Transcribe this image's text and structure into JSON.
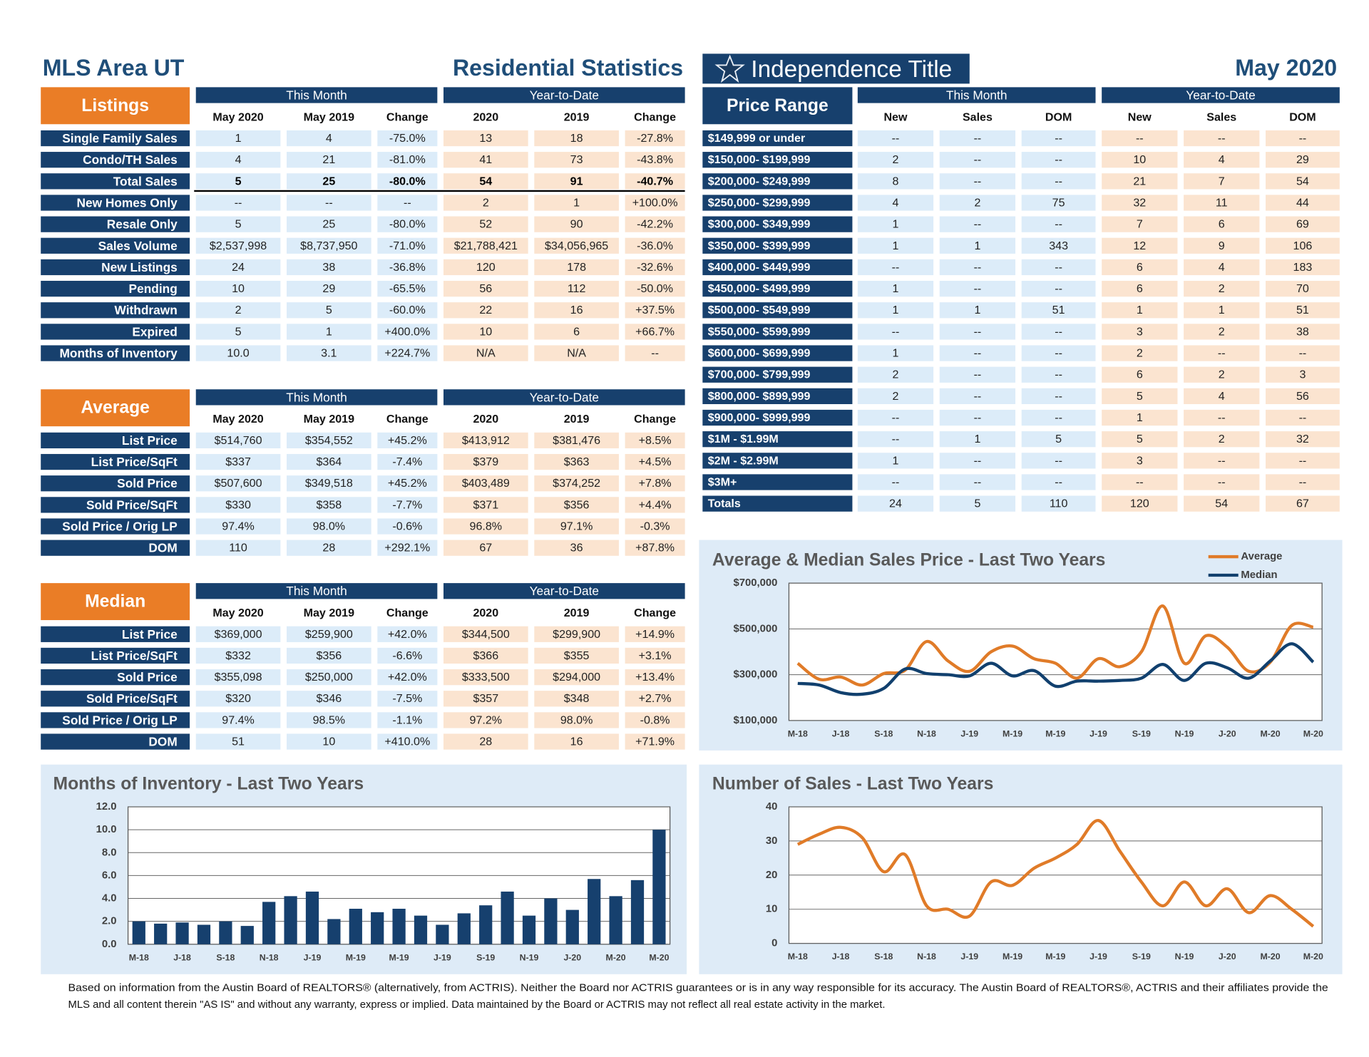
{
  "header": {
    "area": "MLS Area UT",
    "title": "Residential Statistics",
    "logo": "Independence Title",
    "date": "May 2020"
  },
  "listings": {
    "title": "Listings",
    "groups": [
      "This Month",
      "Year-to-Date"
    ],
    "columns": [
      "May 2020",
      "May 2019",
      "Change",
      "2020",
      "2019",
      "Change"
    ],
    "rows": [
      {
        "label": "Single Family Sales",
        "cells": [
          "1",
          "4",
          "-75.0%",
          "13",
          "18",
          "-27.8%"
        ]
      },
      {
        "label": "Condo/TH Sales",
        "cells": [
          "4",
          "21",
          "-81.0%",
          "41",
          "73",
          "-43.8%"
        ]
      },
      {
        "label": "Total Sales",
        "cells": [
          "5",
          "25",
          "-80.0%",
          "54",
          "91",
          "-40.7%"
        ]
      },
      {
        "label": "New Homes Only",
        "cells": [
          "--",
          "--",
          "--",
          "2",
          "1",
          "+100.0%"
        ]
      },
      {
        "label": "Resale Only",
        "cells": [
          "5",
          "25",
          "-80.0%",
          "52",
          "90",
          "-42.2%"
        ]
      },
      {
        "label": "Sales Volume",
        "cells": [
          "$2,537,998",
          "$8,737,950",
          "-71.0%",
          "$21,788,421",
          "$34,056,965",
          "-36.0%"
        ]
      },
      {
        "label": "New Listings",
        "cells": [
          "24",
          "38",
          "-36.8%",
          "120",
          "178",
          "-32.6%"
        ]
      },
      {
        "label": "Pending",
        "cells": [
          "10",
          "29",
          "-65.5%",
          "56",
          "112",
          "-50.0%"
        ]
      },
      {
        "label": "Withdrawn",
        "cells": [
          "2",
          "5",
          "-60.0%",
          "22",
          "16",
          "+37.5%"
        ]
      },
      {
        "label": "Expired",
        "cells": [
          "5",
          "1",
          "+400.0%",
          "10",
          "6",
          "+66.7%"
        ]
      },
      {
        "label": "Months of Inventory",
        "cells": [
          "10.0",
          "3.1",
          "+224.7%",
          "N/A",
          "N/A",
          "--"
        ]
      }
    ]
  },
  "average": {
    "title": "Average",
    "groups": [
      "This Month",
      "Year-to-Date"
    ],
    "columns": [
      "May 2020",
      "May 2019",
      "Change",
      "2020",
      "2019",
      "Change"
    ],
    "rows": [
      {
        "label": "List Price",
        "cells": [
          "$514,760",
          "$354,552",
          "+45.2%",
          "$413,912",
          "$381,476",
          "+8.5%"
        ]
      },
      {
        "label": "List Price/SqFt",
        "cells": [
          "$337",
          "$364",
          "-7.4%",
          "$379",
          "$363",
          "+4.5%"
        ]
      },
      {
        "label": "Sold Price",
        "cells": [
          "$507,600",
          "$349,518",
          "+45.2%",
          "$403,489",
          "$374,252",
          "+7.8%"
        ]
      },
      {
        "label": "Sold Price/SqFt",
        "cells": [
          "$330",
          "$358",
          "-7.7%",
          "$371",
          "$356",
          "+4.4%"
        ]
      },
      {
        "label": "Sold Price / Orig LP",
        "cells": [
          "97.4%",
          "98.0%",
          "-0.6%",
          "96.8%",
          "97.1%",
          "-0.3%"
        ]
      },
      {
        "label": "DOM",
        "cells": [
          "110",
          "28",
          "+292.1%",
          "67",
          "36",
          "+87.8%"
        ]
      }
    ]
  },
  "median": {
    "title": "Median",
    "groups": [
      "This Month",
      "Year-to-Date"
    ],
    "columns": [
      "May 2020",
      "May 2019",
      "Change",
      "2020",
      "2019",
      "Change"
    ],
    "rows": [
      {
        "label": "List Price",
        "cells": [
          "$369,000",
          "$259,900",
          "+42.0%",
          "$344,500",
          "$299,900",
          "+14.9%"
        ]
      },
      {
        "label": "List Price/SqFt",
        "cells": [
          "$332",
          "$356",
          "-6.6%",
          "$366",
          "$355",
          "+3.1%"
        ]
      },
      {
        "label": "Sold Price",
        "cells": [
          "$355,098",
          "$250,000",
          "+42.0%",
          "$333,500",
          "$294,000",
          "+13.4%"
        ]
      },
      {
        "label": "Sold Price/SqFt",
        "cells": [
          "$320",
          "$346",
          "-7.5%",
          "$357",
          "$348",
          "+2.7%"
        ]
      },
      {
        "label": "Sold Price / Orig LP",
        "cells": [
          "97.4%",
          "98.5%",
          "-1.1%",
          "97.2%",
          "98.0%",
          "-0.8%"
        ]
      },
      {
        "label": "DOM",
        "cells": [
          "51",
          "10",
          "+410.0%",
          "28",
          "16",
          "+71.9%"
        ]
      }
    ]
  },
  "price_range": {
    "title": "Price Range",
    "groups": [
      "This Month",
      "Year-to-Date"
    ],
    "columns": [
      "New",
      "Sales",
      "DOM",
      "New",
      "Sales",
      "DOM"
    ],
    "rows": [
      {
        "label": "$149,999 or under",
        "cells": [
          "--",
          "--",
          "--",
          "--",
          "--",
          "--"
        ]
      },
      {
        "label": "$150,000- $199,999",
        "cells": [
          "2",
          "--",
          "--",
          "10",
          "4",
          "29"
        ]
      },
      {
        "label": "$200,000- $249,999",
        "cells": [
          "8",
          "--",
          "--",
          "21",
          "7",
          "54"
        ]
      },
      {
        "label": "$250,000- $299,999",
        "cells": [
          "4",
          "2",
          "75",
          "32",
          "11",
          "44"
        ]
      },
      {
        "label": "$300,000- $349,999",
        "cells": [
          "1",
          "--",
          "--",
          "7",
          "6",
          "69"
        ]
      },
      {
        "label": "$350,000- $399,999",
        "cells": [
          "1",
          "1",
          "343",
          "12",
          "9",
          "106"
        ]
      },
      {
        "label": "$400,000- $449,999",
        "cells": [
          "--",
          "--",
          "--",
          "6",
          "4",
          "183"
        ]
      },
      {
        "label": "$450,000- $499,999",
        "cells": [
          "1",
          "--",
          "--",
          "6",
          "2",
          "70"
        ]
      },
      {
        "label": "$500,000- $549,999",
        "cells": [
          "1",
          "1",
          "51",
          "1",
          "1",
          "51"
        ]
      },
      {
        "label": "$550,000- $599,999",
        "cells": [
          "--",
          "--",
          "--",
          "3",
          "2",
          "38"
        ]
      },
      {
        "label": "$600,000- $699,999",
        "cells": [
          "1",
          "--",
          "--",
          "2",
          "--",
          "--"
        ]
      },
      {
        "label": "$700,000- $799,999",
        "cells": [
          "2",
          "--",
          "--",
          "6",
          "2",
          "3"
        ]
      },
      {
        "label": "$800,000- $899,999",
        "cells": [
          "2",
          "--",
          "--",
          "5",
          "4",
          "56"
        ]
      },
      {
        "label": "$900,000- $999,999",
        "cells": [
          "--",
          "--",
          "--",
          "1",
          "--",
          "--"
        ]
      },
      {
        "label": "$1M - $1.99M",
        "cells": [
          "--",
          "1",
          "5",
          "5",
          "2",
          "32"
        ]
      },
      {
        "label": "$2M - $2.99M",
        "cells": [
          "1",
          "--",
          "--",
          "3",
          "--",
          "--"
        ]
      },
      {
        "label": "$3M+",
        "cells": [
          "--",
          "--",
          "--",
          "--",
          "--",
          "--"
        ]
      },
      {
        "label": "Totals",
        "cells": [
          "24",
          "5",
          "110",
          "120",
          "54",
          "67"
        ]
      }
    ]
  },
  "chart_data": [
    {
      "type": "line",
      "title": "Average & Median Sales Price - Last Two Years",
      "categories": [
        "M-18",
        null,
        "J-18",
        null,
        "S-18",
        null,
        "N-18",
        null,
        "J-19",
        null,
        "M-19",
        null,
        "M-19",
        null,
        "J-19",
        null,
        "S-19",
        null,
        "N-19",
        null,
        "J-20",
        null,
        "M-20",
        null,
        "M-20"
      ],
      "series": [
        {
          "name": "Average",
          "color": "#e07b28",
          "values": [
            350000,
            280000,
            290000,
            255000,
            305000,
            320000,
            445000,
            360000,
            315000,
            400000,
            425000,
            370000,
            350000,
            285000,
            370000,
            335000,
            400000,
            600000,
            350000,
            470000,
            420000,
            315000,
            355000,
            515000,
            507600
          ]
        },
        {
          "name": "Median",
          "color": "#11406e",
          "values": [
            262000,
            255000,
            222000,
            215000,
            240000,
            325000,
            305000,
            300000,
            295000,
            350000,
            295000,
            318000,
            250000,
            272000,
            272000,
            275000,
            285000,
            345000,
            275000,
            350000,
            330000,
            285000,
            360000,
            435000,
            355098
          ]
        }
      ],
      "ylim": [
        100000,
        700000
      ],
      "yticks": [
        {
          "value": 100000,
          "label": "$100,000"
        },
        {
          "value": 300000,
          "label": "$300,000"
        },
        {
          "value": 500000,
          "label": "$500,000"
        },
        {
          "value": 700000,
          "label": "$700,000"
        }
      ],
      "grid": true,
      "legend": "top-right"
    },
    {
      "type": "bar",
      "title": "Months of Inventory - Last Two Years",
      "categories": [
        "M-18",
        null,
        "J-18",
        null,
        "S-18",
        null,
        "N-18",
        null,
        "J-19",
        null,
        "M-19",
        null,
        "M-19",
        null,
        "J-19",
        null,
        "S-19",
        null,
        "N-19",
        null,
        "J-20",
        null,
        "M-20",
        null,
        "M-20"
      ],
      "values": [
        2.0,
        1.8,
        1.9,
        1.7,
        2.0,
        1.6,
        3.7,
        4.2,
        4.6,
        2.2,
        3.1,
        2.8,
        3.1,
        2.5,
        1.7,
        2.7,
        3.4,
        4.6,
        2.5,
        4.0,
        3.0,
        5.7,
        4.2,
        5.6,
        10.0
      ],
      "color": "#16406e",
      "ylim": [
        0,
        12
      ],
      "yticks": [
        {
          "value": 0,
          "label": "0.0"
        },
        {
          "value": 2,
          "label": "2.0"
        },
        {
          "value": 4,
          "label": "4.0"
        },
        {
          "value": 6,
          "label": "6.0"
        },
        {
          "value": 8,
          "label": "8.0"
        },
        {
          "value": 10,
          "label": "10.0"
        },
        {
          "value": 12,
          "label": "12.0"
        }
      ],
      "grid": true
    },
    {
      "type": "line",
      "title": "Number of Sales - Last Two Years",
      "categories": [
        "M-18",
        null,
        "J-18",
        null,
        "S-18",
        null,
        "N-18",
        null,
        "J-19",
        null,
        "M-19",
        null,
        "M-19",
        null,
        "J-19",
        null,
        "S-19",
        null,
        "N-19",
        null,
        "J-20",
        null,
        "M-20",
        null,
        "M-20"
      ],
      "series": [
        {
          "color": "#e07b28",
          "values": [
            29,
            32,
            34,
            31,
            21,
            26,
            11,
            10,
            8,
            18,
            17,
            22,
            25,
            29,
            36,
            27,
            18,
            11,
            18,
            11,
            16,
            9,
            14,
            10,
            5
          ]
        }
      ],
      "ylim": [
        0,
        40
      ],
      "yticks": [
        0,
        10,
        20,
        30,
        40
      ],
      "grid": true
    }
  ],
  "footer": [
    "Based on information from the Austin Board of REALTORS® (alternatively, from ACTRIS). Neither the Board nor ACTRIS guarantees or is in any way responsible for its accuracy. The Austin Board of REALTORS®, ACTRIS and their affiliates provide the",
    "MLS and all content therein \"AS IS\" and without any warranty, express or implied. Data maintained by the Board or ACTRIS may not reflect all real estate activity in the market."
  ]
}
